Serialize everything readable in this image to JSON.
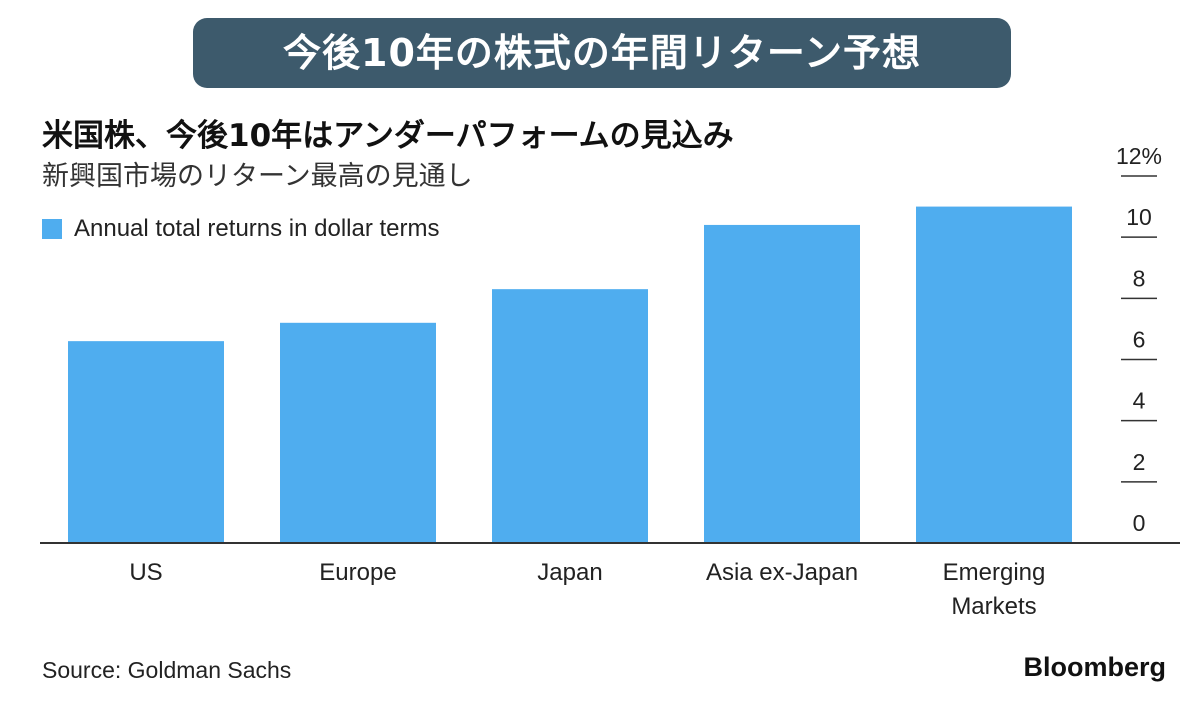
{
  "banner": {
    "text": "今後10年の株式の年間リターン予想"
  },
  "chart_data": {
    "type": "bar",
    "title": "米国株、今後10年はアンダーパフォームの見込み",
    "subtitle": "新興国市場のリターン最高の見通し",
    "categories": [
      "US",
      "Europe",
      "Japan",
      "Asia ex-Japan",
      "Emerging Markets"
    ],
    "series": [
      {
        "name": "Annual total returns in dollar terms",
        "values": [
          6.6,
          7.2,
          8.3,
          10.4,
          11.0
        ]
      }
    ],
    "ylim": [
      0,
      12
    ],
    "ytick_values": [
      0,
      2,
      4,
      6,
      8,
      10,
      12
    ],
    "ytick_labels": [
      "0",
      "2",
      "4",
      "6",
      "8",
      "10",
      "12%"
    ],
    "y_axis_position": "right",
    "legend_position": "top-left",
    "grid": false,
    "colors": {
      "bar": "#4fadef",
      "axis": "#333333"
    }
  },
  "footer": {
    "source": "Source: Goldman Sachs",
    "brand": "Bloomberg"
  }
}
